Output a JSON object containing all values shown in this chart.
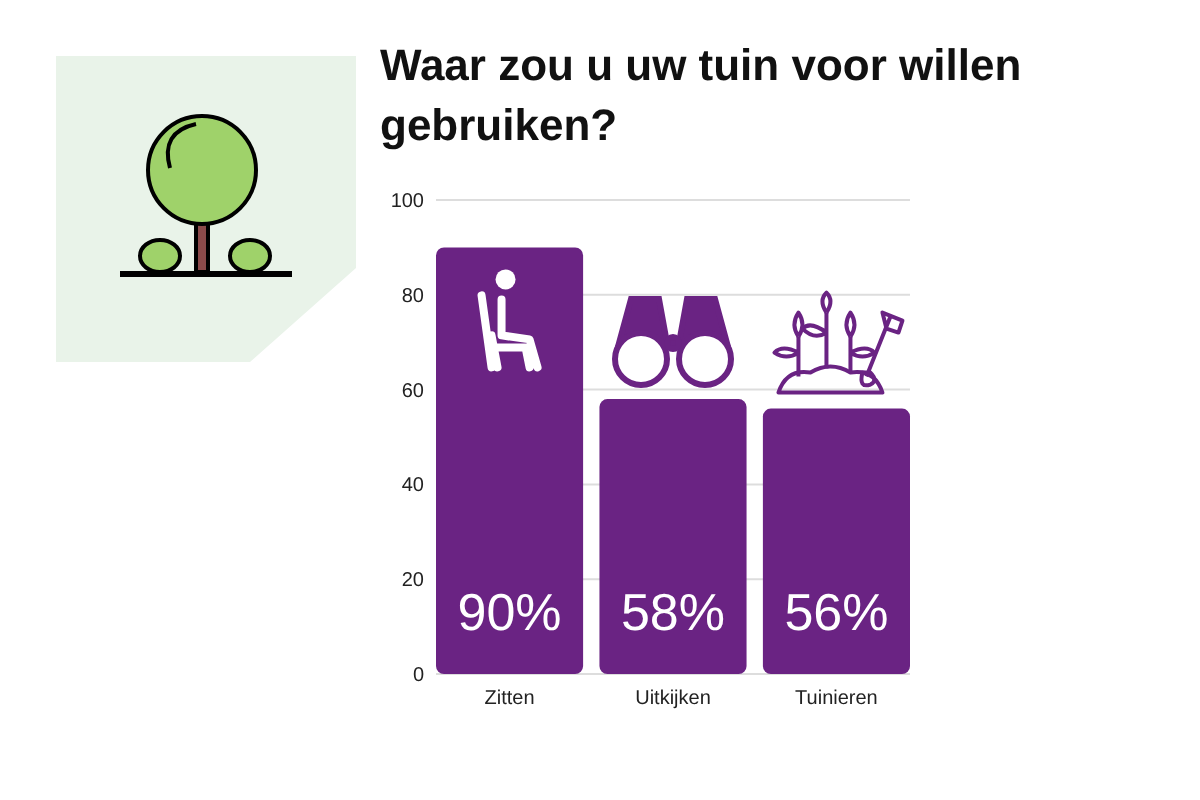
{
  "chart_data": {
    "type": "bar",
    "title": "Waar zou u uw tuin voor willen gebruiken?",
    "categories": [
      "Zitten",
      "Uitkijken",
      "Tuinieren"
    ],
    "values": [
      90,
      58,
      56
    ],
    "color": "#6a2383",
    "value_labels": [
      "90%",
      "58%",
      "56%"
    ],
    "ylim": [
      0,
      100
    ],
    "yticks": [
      0,
      20,
      40,
      60,
      80,
      100
    ],
    "grid": "y"
  }
}
